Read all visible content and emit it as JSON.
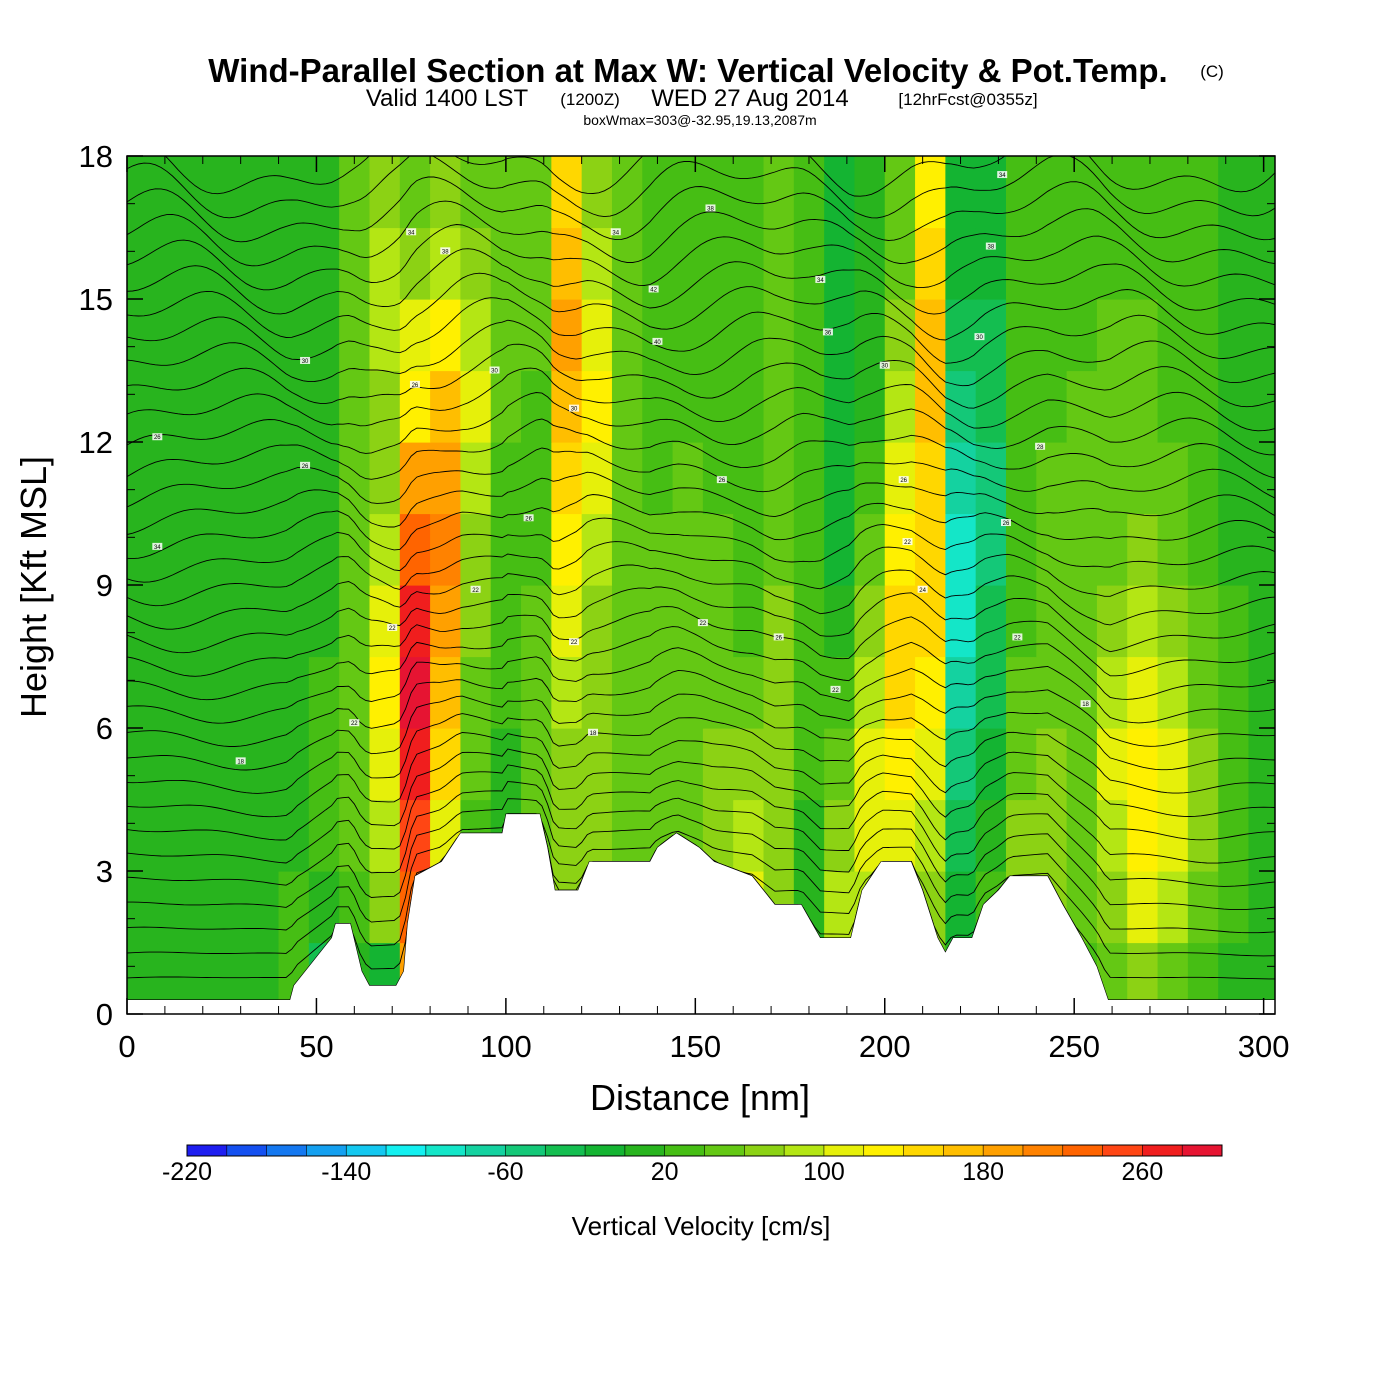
{
  "title": "Wind-Parallel Section at Max W: Vertical Velocity & Pot.Temp.",
  "title_mark": "(C)",
  "subtitle_main": "Valid 1400 LST",
  "subtitle_utc": "(1200Z)",
  "subtitle_date": "WED 27 Aug 2014",
  "subtitle_fcst": "[12hrFcst@0355z]",
  "subtitle_box": "boxWmax=303@-32.95,19.13,2087m",
  "chart_data": {
    "type": "heatmap",
    "title": "Wind-Parallel Section at Max W: Vertical Velocity & Pot.Temp.",
    "xlabel": "Distance [nm]",
    "ylabel": "Height [Kft MSL]",
    "xlim": [
      0,
      303
    ],
    "ylim": [
      0,
      18
    ],
    "x_ticks": [
      "0",
      "50",
      "100",
      "150",
      "200",
      "250",
      "300"
    ],
    "y_ticks": [
      "0",
      "3",
      "6",
      "9",
      "12",
      "15",
      "18"
    ],
    "colorbar": {
      "label": "Vertical Velocity [cm/s]",
      "tick_labels": [
        "-220",
        "-140",
        "-60",
        "20",
        "100",
        "180",
        "260"
      ],
      "tick_values": [
        -220,
        -140,
        -60,
        20,
        100,
        180,
        260
      ],
      "min": -220,
      "max": 300,
      "step": 20,
      "colors": [
        "#1e1ef0",
        "#1450f0",
        "#1478f0",
        "#14a0f0",
        "#14c8f0",
        "#14f0f0",
        "#14e6c8",
        "#14d2a0",
        "#14c878",
        "#14be50",
        "#14b432",
        "#28b41e",
        "#46be14",
        "#64c814",
        "#8cd214",
        "#b4e614",
        "#e6f00a",
        "#fff000",
        "#ffd700",
        "#ffbe00",
        "#ffa000",
        "#ff8200",
        "#ff6400",
        "#ff4614",
        "#f01e1e",
        "#e61432"
      ]
    },
    "w_cells": {
      "x_spacing_nm": 8,
      "y_spacing_kft": 1.5,
      "note_units": "cm/s",
      "rows": [
        [
          0,
          0,
          0,
          0,
          0,
          20,
          -40,
          0,
          -20,
          180,
          20,
          -20,
          -40,
          20,
          40,
          20,
          0,
          60,
          20,
          60,
          140,
          40,
          -20,
          60,
          60,
          100,
          40,
          0,
          40,
          60,
          20,
          20,
          40,
          60,
          40,
          20,
          0,
          0
        ],
        [
          0,
          0,
          0,
          0,
          0,
          20,
          0,
          20,
          60,
          220,
          60,
          20,
          0,
          40,
          60,
          60,
          20,
          40,
          40,
          60,
          100,
          60,
          0,
          80,
          80,
          100,
          60,
          -20,
          20,
          60,
          60,
          40,
          60,
          100,
          80,
          40,
          20,
          0
        ],
        [
          0,
          0,
          0,
          0,
          0,
          0,
          20,
          40,
          80,
          240,
          100,
          20,
          0,
          40,
          60,
          60,
          40,
          40,
          40,
          60,
          80,
          60,
          0,
          60,
          100,
          100,
          80,
          -40,
          0,
          60,
          60,
          40,
          80,
          120,
          100,
          60,
          20,
          0
        ],
        [
          0,
          0,
          0,
          0,
          0,
          0,
          20,
          40,
          100,
          260,
          140,
          40,
          0,
          40,
          60,
          60,
          40,
          40,
          40,
          60,
          60,
          60,
          20,
          40,
          100,
          120,
          100,
          -60,
          -20,
          40,
          60,
          40,
          100,
          120,
          100,
          60,
          20,
          0
        ],
        [
          0,
          0,
          0,
          0,
          0,
          0,
          20,
          40,
          120,
          280,
          160,
          40,
          20,
          40,
          80,
          60,
          40,
          40,
          40,
          40,
          40,
          60,
          20,
          20,
          80,
          140,
          120,
          -80,
          -40,
          40,
          40,
          40,
          80,
          100,
          80,
          40,
          20,
          0
        ],
        [
          0,
          0,
          0,
          0,
          0,
          0,
          0,
          40,
          100,
          260,
          180,
          60,
          20,
          40,
          100,
          60,
          40,
          40,
          40,
          40,
          20,
          60,
          20,
          0,
          60,
          140,
          140,
          -100,
          -40,
          20,
          40,
          40,
          60,
          80,
          60,
          40,
          20,
          0
        ],
        [
          0,
          0,
          0,
          0,
          0,
          0,
          0,
          40,
          80,
          220,
          200,
          60,
          20,
          20,
          120,
          80,
          40,
          40,
          40,
          40,
          20,
          40,
          20,
          -20,
          40,
          120,
          140,
          -100,
          -60,
          20,
          40,
          40,
          40,
          60,
          40,
          20,
          0,
          0
        ],
        [
          0,
          0,
          0,
          0,
          0,
          0,
          0,
          40,
          60,
          180,
          180,
          80,
          20,
          20,
          140,
          100,
          40,
          20,
          40,
          20,
          20,
          40,
          20,
          -20,
          20,
          100,
          140,
          -80,
          -60,
          20,
          40,
          40,
          40,
          40,
          40,
          20,
          0,
          0
        ],
        [
          0,
          0,
          0,
          0,
          0,
          0,
          0,
          40,
          60,
          120,
          160,
          100,
          40,
          20,
          160,
          120,
          40,
          20,
          20,
          20,
          20,
          40,
          20,
          -20,
          0,
          80,
          160,
          -60,
          -40,
          20,
          20,
          40,
          40,
          40,
          20,
          20,
          0,
          0
        ],
        [
          0,
          0,
          0,
          0,
          0,
          0,
          0,
          40,
          80,
          100,
          120,
          80,
          40,
          40,
          180,
          100,
          40,
          20,
          20,
          20,
          20,
          40,
          20,
          -20,
          0,
          60,
          160,
          -40,
          -40,
          20,
          20,
          20,
          40,
          40,
          20,
          20,
          0,
          0
        ],
        [
          0,
          0,
          0,
          0,
          0,
          0,
          0,
          40,
          80,
          60,
          80,
          60,
          40,
          40,
          160,
          80,
          40,
          20,
          20,
          20,
          20,
          40,
          20,
          -20,
          0,
          40,
          140,
          -20,
          -20,
          20,
          20,
          20,
          20,
          20,
          20,
          20,
          0,
          0
        ],
        [
          0,
          0,
          0,
          0,
          0,
          0,
          0,
          40,
          60,
          40,
          60,
          40,
          40,
          40,
          140,
          60,
          40,
          20,
          20,
          20,
          20,
          40,
          20,
          -20,
          0,
          40,
          120,
          -20,
          -20,
          20,
          20,
          20,
          20,
          20,
          20,
          20,
          0,
          0
        ]
      ]
    },
    "terrain_kft": [
      {
        "x": 0,
        "h": 0.3
      },
      {
        "x": 43,
        "h": 0.3
      },
      {
        "x": 44,
        "h": 0.6
      },
      {
        "x": 48,
        "h": 1.0
      },
      {
        "x": 54,
        "h": 1.6
      },
      {
        "x": 55,
        "h": 1.9
      },
      {
        "x": 59,
        "h": 1.9
      },
      {
        "x": 62,
        "h": 0.9
      },
      {
        "x": 64,
        "h": 0.6
      },
      {
        "x": 71,
        "h": 0.6
      },
      {
        "x": 73,
        "h": 0.9
      },
      {
        "x": 74,
        "h": 1.9
      },
      {
        "x": 76,
        "h": 2.9
      },
      {
        "x": 83,
        "h": 3.2
      },
      {
        "x": 88,
        "h": 3.8
      },
      {
        "x": 99,
        "h": 3.8
      },
      {
        "x": 100,
        "h": 4.2
      },
      {
        "x": 109,
        "h": 4.2
      },
      {
        "x": 111,
        "h": 3.5
      },
      {
        "x": 113,
        "h": 2.6
      },
      {
        "x": 119,
        "h": 2.6
      },
      {
        "x": 122,
        "h": 3.2
      },
      {
        "x": 138,
        "h": 3.2
      },
      {
        "x": 140,
        "h": 3.5
      },
      {
        "x": 145,
        "h": 3.8
      },
      {
        "x": 151,
        "h": 3.5
      },
      {
        "x": 155,
        "h": 3.2
      },
      {
        "x": 165,
        "h": 2.9
      },
      {
        "x": 171,
        "h": 2.3
      },
      {
        "x": 178,
        "h": 2.3
      },
      {
        "x": 183,
        "h": 1.6
      },
      {
        "x": 191,
        "h": 1.6
      },
      {
        "x": 194,
        "h": 2.6
      },
      {
        "x": 199,
        "h": 3.2
      },
      {
        "x": 207,
        "h": 3.2
      },
      {
        "x": 210,
        "h": 2.6
      },
      {
        "x": 214,
        "h": 1.6
      },
      {
        "x": 216,
        "h": 1.3
      },
      {
        "x": 218,
        "h": 1.6
      },
      {
        "x": 223,
        "h": 1.6
      },
      {
        "x": 226,
        "h": 2.3
      },
      {
        "x": 230,
        "h": 2.6
      },
      {
        "x": 233,
        "h": 2.9
      },
      {
        "x": 243,
        "h": 2.9
      },
      {
        "x": 247,
        "h": 2.3
      },
      {
        "x": 252,
        "h": 1.6
      },
      {
        "x": 256,
        "h": 1.0
      },
      {
        "x": 259,
        "h": 0.3
      },
      {
        "x": 303,
        "h": 0.3
      }
    ],
    "theta_contour_labels": [
      {
        "x": 30,
        "y": 5.3,
        "text": "18"
      },
      {
        "x": 8,
        "y": 9.8,
        "text": "34"
      },
      {
        "x": 8,
        "y": 12.1,
        "text": "26"
      },
      {
        "x": 47,
        "y": 11.5,
        "text": "26"
      },
      {
        "x": 47,
        "y": 13.7,
        "text": "30"
      },
      {
        "x": 60,
        "y": 6.1,
        "text": "22"
      },
      {
        "x": 70,
        "y": 8.1,
        "text": "22"
      },
      {
        "x": 76,
        "y": 13.2,
        "text": "26"
      },
      {
        "x": 75,
        "y": 16.4,
        "text": "34"
      },
      {
        "x": 84,
        "y": 16.0,
        "text": "38"
      },
      {
        "x": 92,
        "y": 8.9,
        "text": "22"
      },
      {
        "x": 97,
        "y": 13.5,
        "text": "30"
      },
      {
        "x": 106,
        "y": 10.4,
        "text": "26"
      },
      {
        "x": 118,
        "y": 7.8,
        "text": "22"
      },
      {
        "x": 118,
        "y": 12.7,
        "text": "30"
      },
      {
        "x": 123,
        "y": 5.9,
        "text": "18"
      },
      {
        "x": 129,
        "y": 16.4,
        "text": "34"
      },
      {
        "x": 139,
        "y": 15.2,
        "text": "42"
      },
      {
        "x": 140,
        "y": 14.1,
        "text": "40"
      },
      {
        "x": 157,
        "y": 11.2,
        "text": "26"
      },
      {
        "x": 152,
        "y": 8.2,
        "text": "22"
      },
      {
        "x": 154,
        "y": 16.9,
        "text": "38"
      },
      {
        "x": 172,
        "y": 7.9,
        "text": "26"
      },
      {
        "x": 183,
        "y": 15.4,
        "text": "34"
      },
      {
        "x": 185,
        "y": 14.3,
        "text": "36"
      },
      {
        "x": 187,
        "y": 6.8,
        "text": "22"
      },
      {
        "x": 200,
        "y": 13.6,
        "text": "30"
      },
      {
        "x": 205,
        "y": 11.2,
        "text": "26"
      },
      {
        "x": 206,
        "y": 9.9,
        "text": "22"
      },
      {
        "x": 210,
        "y": 8.9,
        "text": "24"
      },
      {
        "x": 228,
        "y": 16.1,
        "text": "38"
      },
      {
        "x": 225,
        "y": 14.2,
        "text": "30"
      },
      {
        "x": 231,
        "y": 17.6,
        "text": "34"
      },
      {
        "x": 232,
        "y": 10.3,
        "text": "26"
      },
      {
        "x": 235,
        "y": 7.9,
        "text": "22"
      },
      {
        "x": 241,
        "y": 11.9,
        "text": "28"
      },
      {
        "x": 253,
        "y": 6.5,
        "text": "18"
      }
    ]
  }
}
